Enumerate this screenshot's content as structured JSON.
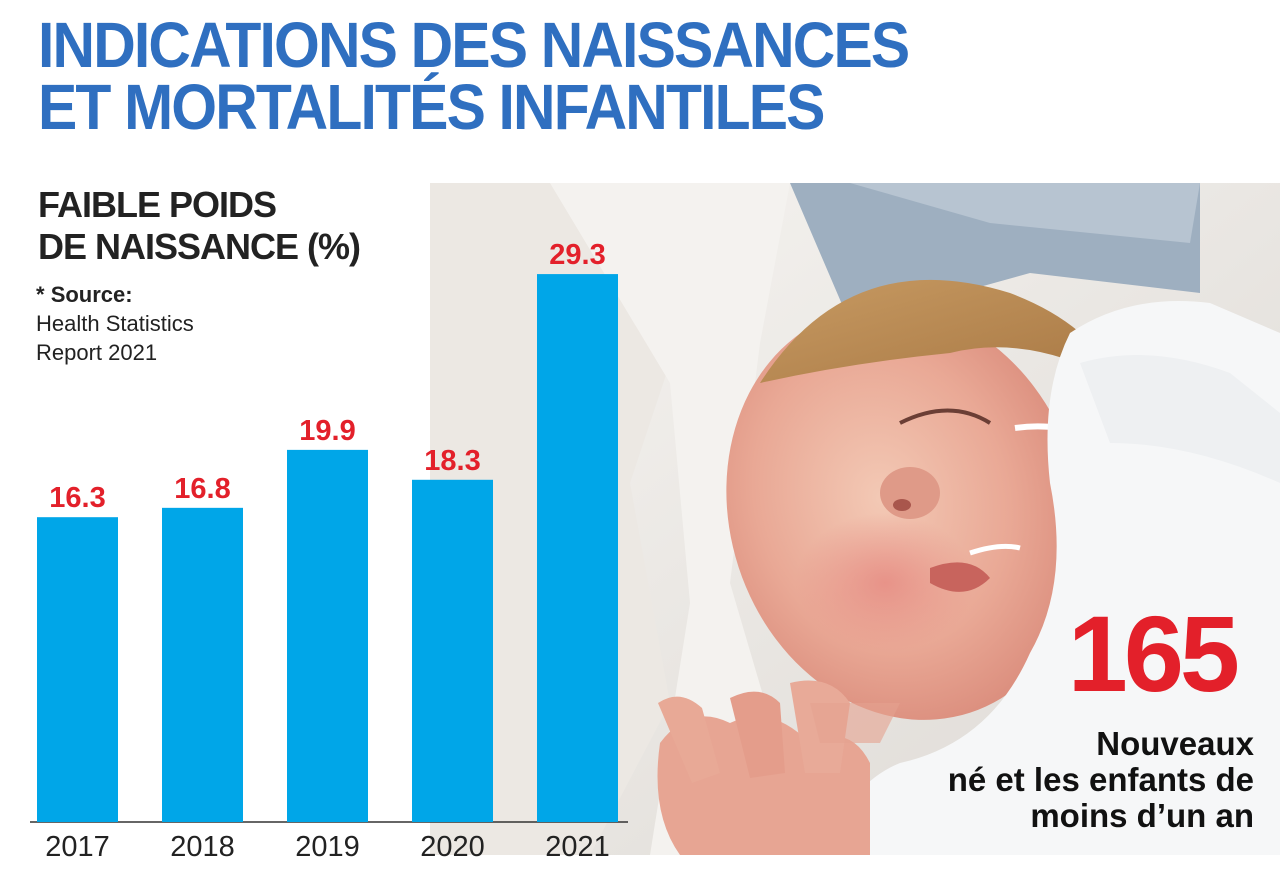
{
  "headline": {
    "line1": "INDICATIONS DES NAISSANCES",
    "line2": "ET MORTALITÉS INFANTILES"
  },
  "chart_data": {
    "type": "bar",
    "title_line1": "FAIBLE POIDS",
    "title_line2": "DE NAISSANCE (%)",
    "source_star": "*",
    "source_line1": "Source:",
    "source_line2": "Health Statistics",
    "source_line3": "Report 2021",
    "categories": [
      "2017",
      "2018",
      "2019",
      "2020",
      "2021"
    ],
    "values": [
      16.3,
      16.8,
      19.9,
      18.3,
      29.3
    ],
    "value_labels": [
      "16.3",
      "16.8",
      "19.9",
      "18.3",
      "29.3"
    ],
    "ylim": [
      0,
      40
    ],
    "xlabel": "",
    "ylabel": "",
    "grid": false,
    "bar_color": "#00a6e8",
    "label_color": "#e3202a"
  },
  "highlight": {
    "number": "165",
    "caption_line1": "Nouveaux",
    "caption_line2": "né et les enfants de",
    "caption_line3": "moins d’un an",
    "number_color": "#e3202a"
  },
  "photo": {
    "subject": "newborn-baby-sleeping"
  }
}
